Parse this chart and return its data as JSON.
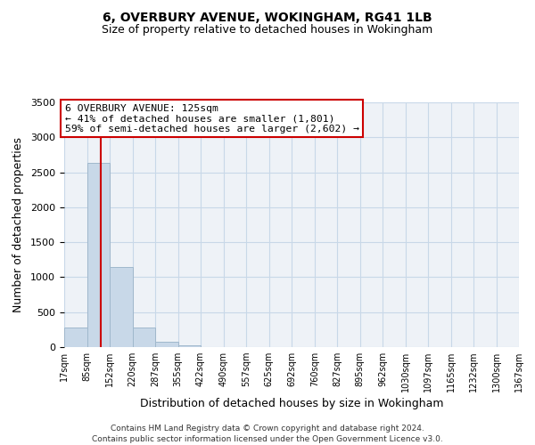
{
  "title": "6, OVERBURY AVENUE, WOKINGHAM, RG41 1LB",
  "subtitle": "Size of property relative to detached houses in Wokingham",
  "xlabel": "Distribution of detached houses by size in Wokingham",
  "ylabel": "Number of detached properties",
  "bar_values": [
    275,
    2640,
    1140,
    280,
    80,
    30,
    0,
    0,
    0,
    0,
    0,
    0,
    0,
    0,
    0,
    0,
    0,
    0,
    0,
    0
  ],
  "bin_edges": [
    17,
    85,
    152,
    220,
    287,
    355,
    422,
    490,
    557,
    625,
    692,
    760,
    827,
    895,
    962,
    1030,
    1097,
    1165,
    1232,
    1300,
    1367
  ],
  "tick_labels": [
    "17sqm",
    "85sqm",
    "152sqm",
    "220sqm",
    "287sqm",
    "355sqm",
    "422sqm",
    "490sqm",
    "557sqm",
    "625sqm",
    "692sqm",
    "760sqm",
    "827sqm",
    "895sqm",
    "962sqm",
    "1030sqm",
    "1097sqm",
    "1165sqm",
    "1232sqm",
    "1300sqm",
    "1367sqm"
  ],
  "bar_color": "#c8d8e8",
  "bar_edge_color": "#a0b8cc",
  "grid_color": "#c8d8e8",
  "vline_x": 125,
  "vline_color": "#cc0000",
  "annotation_text": "6 OVERBURY AVENUE: 125sqm\n← 41% of detached houses are smaller (1,801)\n59% of semi-detached houses are larger (2,602) →",
  "annotation_box_color": "#cc0000",
  "ylim": [
    0,
    3500
  ],
  "yticks": [
    0,
    500,
    1000,
    1500,
    2000,
    2500,
    3000,
    3500
  ],
  "footer1": "Contains HM Land Registry data © Crown copyright and database right 2024.",
  "footer2": "Contains public sector information licensed under the Open Government Licence v3.0.",
  "bg_color": "#eef2f7",
  "title_fontsize": 10,
  "subtitle_fontsize": 9
}
